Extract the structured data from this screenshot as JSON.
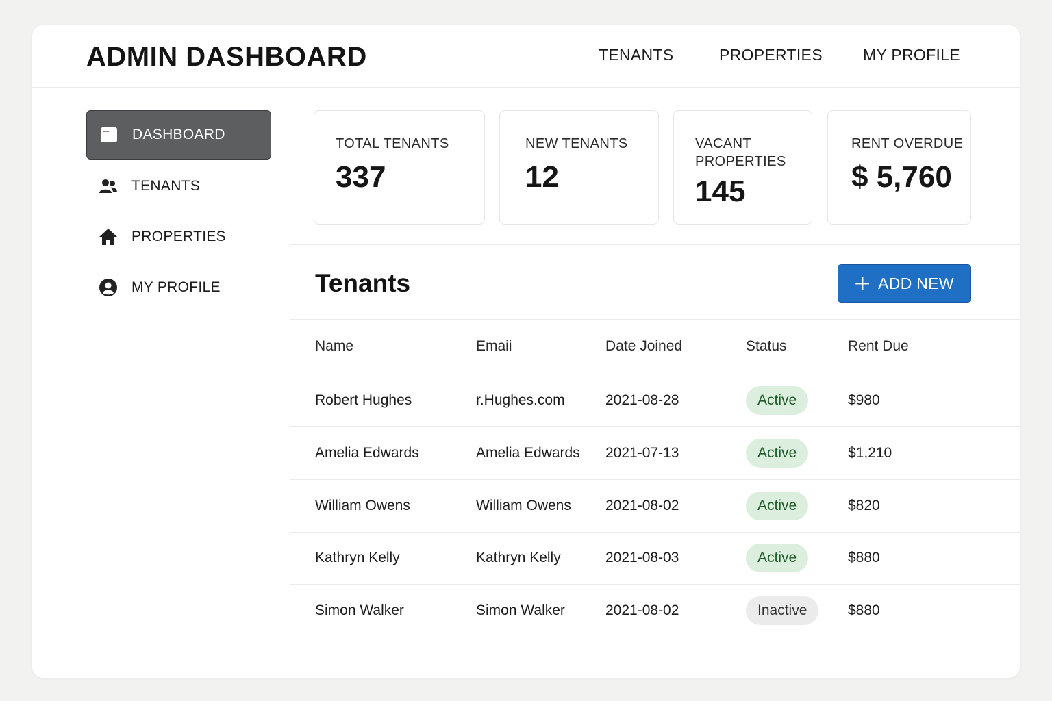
{
  "app": {
    "title": "ADMIN DASHBOARD"
  },
  "top_nav": [
    {
      "label": "TENANTS"
    },
    {
      "label": "PROPERTIES"
    },
    {
      "label": "MY PROFILE"
    }
  ],
  "sidebar": {
    "items": [
      {
        "label": "DASHBOARD",
        "icon": "dashboard-icon",
        "active": true
      },
      {
        "label": "TENANTS",
        "icon": "users-icon",
        "active": false
      },
      {
        "label": "PROPERTIES",
        "icon": "home-icon",
        "active": false
      },
      {
        "label": "MY PROFILE",
        "icon": "profile-icon",
        "active": false
      }
    ]
  },
  "stats": [
    {
      "label": "TOTAL TENANTS",
      "value": "337"
    },
    {
      "label": "NEW TENANTS",
      "value": "12"
    },
    {
      "label": "VACANT PROPERTIES",
      "value": "145"
    },
    {
      "label": "RENT OVERDUE",
      "value": "$ 5,760"
    }
  ],
  "tenants_section": {
    "title": "Tenants",
    "add_button_label": "ADD NEW"
  },
  "table": {
    "headers": [
      "Name",
      "Emaii",
      "Date Joined",
      "Status",
      "Rent Due"
    ],
    "rows": [
      {
        "name": "Robert Hughes",
        "email": "r.Hughes.com",
        "date": "2021-08-28",
        "status": "Active",
        "rent": "$980"
      },
      {
        "name": "Amelia Edwards",
        "email": "Amelia Edwards",
        "date": "2021-07-13",
        "status": "Active",
        "rent": "$1,210"
      },
      {
        "name": "William Owens",
        "email": "William Owens",
        "date": "2021-08-02",
        "status": "Active",
        "rent": "$820"
      },
      {
        "name": "Kathryn Kelly",
        "email": "Kathryn Kelly",
        "date": "2021-08-03",
        "status": "Active",
        "rent": "$880"
      },
      {
        "name": "Simon Walker",
        "email": "Simon Walker",
        "date": "2021-08-02",
        "status": "Inactive",
        "rent": "$880"
      }
    ]
  },
  "colors": {
    "primary_button": "#1f6fc4",
    "active_nav": "#5c5e60",
    "status_active_bg": "#dcefde",
    "status_inactive_bg": "#ebebeb"
  }
}
